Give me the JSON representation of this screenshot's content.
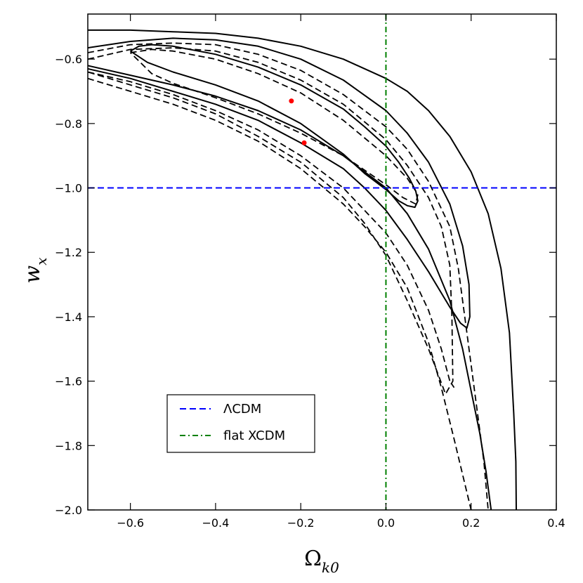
{
  "chart_data": {
    "type": "line",
    "xlabel": "Ω",
    "xlabel_sub": "k0",
    "ylabel": "w",
    "ylabel_sub": "x",
    "xlim": [
      -0.7,
      0.4
    ],
    "ylim": [
      -2.0,
      -0.46
    ],
    "x_ticks": [
      -0.6,
      -0.4,
      -0.2,
      0.0,
      0.2,
      0.4
    ],
    "x_tick_labels": [
      "−0.6",
      "−0.4",
      "−0.2",
      "0.0",
      "0.2",
      "0.4"
    ],
    "y_ticks": [
      -0.6,
      -0.8,
      -1.0,
      -1.2,
      -1.4,
      -1.6,
      -1.8,
      -2.0
    ],
    "y_tick_labels": [
      "−0.6",
      "−0.8",
      "−1.0",
      "−1.2",
      "−1.4",
      "−1.6",
      "−1.8",
      "−2.0"
    ],
    "reference_lines": [
      {
        "name": "lcdm",
        "orientation": "horizontal",
        "value": -1.0,
        "color": "#0000ff",
        "style": "dashed",
        "legend_label": "ΛCDM"
      },
      {
        "name": "flat-xcdm",
        "orientation": "vertical",
        "value": 0.0,
        "color": "#008000",
        "style": "dashdot",
        "legend_label": "flat XCDM"
      }
    ],
    "best_fit_points": [
      {
        "x": -0.222,
        "y": -0.73,
        "color": "#ff0000"
      },
      {
        "x": -0.192,
        "y": -0.86,
        "color": "#ff0000"
      }
    ],
    "series": [
      {
        "name": "solid-1sigma",
        "style": "solid",
        "points": [
          [
            -0.6,
            -0.575
          ],
          [
            -0.58,
            -0.56
          ],
          [
            -0.55,
            -0.555
          ],
          [
            -0.5,
            -0.56
          ],
          [
            -0.4,
            -0.585
          ],
          [
            -0.3,
            -0.625
          ],
          [
            -0.2,
            -0.68
          ],
          [
            -0.1,
            -0.755
          ],
          [
            -0.05,
            -0.81
          ],
          [
            0.0,
            -0.87
          ],
          [
            0.03,
            -0.92
          ],
          [
            0.055,
            -0.97
          ],
          [
            0.07,
            -1.01
          ],
          [
            0.075,
            -1.04
          ],
          [
            0.068,
            -1.06
          ],
          [
            0.05,
            -1.055
          ],
          [
            0.03,
            -1.04
          ],
          [
            0.0,
            -1.005
          ],
          [
            -0.05,
            -0.955
          ],
          [
            -0.1,
            -0.895
          ],
          [
            -0.2,
            -0.8
          ],
          [
            -0.3,
            -0.73
          ],
          [
            -0.4,
            -0.68
          ],
          [
            -0.5,
            -0.64
          ],
          [
            -0.56,
            -0.61
          ],
          [
            -0.6,
            -0.575
          ]
        ]
      },
      {
        "name": "solid-2sigma",
        "style": "solid",
        "points": [
          [
            -0.7,
            -0.565
          ],
          [
            -0.6,
            -0.545
          ],
          [
            -0.5,
            -0.535
          ],
          [
            -0.4,
            -0.54
          ],
          [
            -0.3,
            -0.56
          ],
          [
            -0.2,
            -0.6
          ],
          [
            -0.1,
            -0.665
          ],
          [
            0.0,
            -0.76
          ],
          [
            0.05,
            -0.83
          ],
          [
            0.1,
            -0.92
          ],
          [
            0.15,
            -1.05
          ],
          [
            0.18,
            -1.18
          ],
          [
            0.195,
            -1.3
          ],
          [
            0.197,
            -1.4
          ],
          [
            0.19,
            -1.435
          ],
          [
            0.175,
            -1.42
          ],
          [
            0.15,
            -1.37
          ],
          [
            0.1,
            -1.26
          ],
          [
            0.05,
            -1.16
          ],
          [
            0.0,
            -1.07
          ],
          [
            -0.05,
            -1.0
          ],
          [
            -0.1,
            -0.94
          ],
          [
            -0.2,
            -0.86
          ],
          [
            -0.3,
            -0.79
          ],
          [
            -0.4,
            -0.74
          ],
          [
            -0.5,
            -0.7
          ],
          [
            -0.6,
            -0.66
          ],
          [
            -0.7,
            -0.63
          ]
        ]
      },
      {
        "name": "solid-3sigma",
        "style": "solid",
        "points": [
          [
            -0.7,
            -0.51
          ],
          [
            -0.6,
            -0.51
          ],
          [
            -0.5,
            -0.515
          ],
          [
            -0.4,
            -0.52
          ],
          [
            -0.3,
            -0.535
          ],
          [
            -0.2,
            -0.56
          ],
          [
            -0.1,
            -0.6
          ],
          [
            0.0,
            -0.66
          ],
          [
            0.05,
            -0.7
          ],
          [
            0.1,
            -0.76
          ],
          [
            0.15,
            -0.84
          ],
          [
            0.2,
            -0.95
          ],
          [
            0.24,
            -1.08
          ],
          [
            0.27,
            -1.25
          ],
          [
            0.29,
            -1.45
          ],
          [
            0.3,
            -1.7
          ],
          [
            0.305,
            -1.85
          ],
          [
            0.306,
            -2.0
          ]
        ]
      },
      {
        "name": "solid-3sigma-lower",
        "style": "solid",
        "points": [
          [
            -0.7,
            -0.62
          ],
          [
            -0.6,
            -0.65
          ],
          [
            -0.5,
            -0.68
          ],
          [
            -0.4,
            -0.715
          ],
          [
            -0.3,
            -0.76
          ],
          [
            -0.2,
            -0.82
          ],
          [
            -0.1,
            -0.9
          ],
          [
            0.0,
            -1.0
          ],
          [
            0.05,
            -1.08
          ],
          [
            0.1,
            -1.19
          ],
          [
            0.15,
            -1.35
          ],
          [
            0.18,
            -1.5
          ],
          [
            0.2,
            -1.63
          ],
          [
            0.22,
            -1.76
          ],
          [
            0.235,
            -1.88
          ],
          [
            0.247,
            -2.0
          ]
        ]
      },
      {
        "name": "dashed-1sigma",
        "style": "dashed",
        "points": [
          [
            -0.6,
            -0.58
          ],
          [
            -0.55,
            -0.57
          ],
          [
            -0.5,
            -0.575
          ],
          [
            -0.4,
            -0.6
          ],
          [
            -0.3,
            -0.645
          ],
          [
            -0.2,
            -0.705
          ],
          [
            -0.1,
            -0.79
          ],
          [
            0.0,
            -0.9
          ],
          [
            0.05,
            -0.97
          ],
          [
            0.075,
            -1.02
          ],
          [
            0.07,
            -1.05
          ],
          [
            0.04,
            -1.03
          ],
          [
            0.0,
            -0.99
          ],
          [
            -0.05,
            -0.945
          ],
          [
            -0.1,
            -0.9
          ],
          [
            -0.2,
            -0.83
          ],
          [
            -0.3,
            -0.77
          ],
          [
            -0.4,
            -0.72
          ],
          [
            -0.5,
            -0.675
          ],
          [
            -0.55,
            -0.645
          ],
          [
            -0.6,
            -0.58
          ]
        ]
      },
      {
        "name": "dashed-2sigma",
        "style": "dashed",
        "points": [
          [
            -0.7,
            -0.6
          ],
          [
            -0.6,
            -0.57
          ],
          [
            -0.5,
            -0.565
          ],
          [
            -0.4,
            -0.575
          ],
          [
            -0.3,
            -0.61
          ],
          [
            -0.2,
            -0.665
          ],
          [
            -0.1,
            -0.74
          ],
          [
            0.0,
            -0.85
          ],
          [
            0.05,
            -0.93
          ],
          [
            0.1,
            -1.03
          ],
          [
            0.13,
            -1.12
          ],
          [
            0.15,
            -1.24
          ],
          [
            0.155,
            -1.4
          ],
          [
            0.157,
            -1.6
          ],
          [
            0.14,
            -1.64
          ],
          [
            0.1,
            -1.5
          ],
          [
            0.05,
            -1.35
          ],
          [
            0.0,
            -1.21
          ],
          [
            -0.05,
            -1.11
          ],
          [
            -0.1,
            -1.03
          ],
          [
            -0.2,
            -0.92
          ],
          [
            -0.3,
            -0.84
          ],
          [
            -0.4,
            -0.77
          ],
          [
            -0.5,
            -0.72
          ],
          [
            -0.6,
            -0.68
          ],
          [
            -0.7,
            -0.64
          ]
        ]
      },
      {
        "name": "dashed-3sigma-upper",
        "style": "dashed",
        "points": [
          [
            -0.7,
            -0.58
          ],
          [
            -0.6,
            -0.555
          ],
          [
            -0.5,
            -0.55
          ],
          [
            -0.4,
            -0.555
          ],
          [
            -0.3,
            -0.585
          ],
          [
            -0.2,
            -0.635
          ],
          [
            -0.1,
            -0.71
          ],
          [
            0.0,
            -0.81
          ],
          [
            0.05,
            -0.88
          ],
          [
            0.1,
            -0.98
          ],
          [
            0.15,
            -1.12
          ],
          [
            0.17,
            -1.25
          ],
          [
            0.19,
            -1.45
          ],
          [
            0.21,
            -1.65
          ],
          [
            0.23,
            -1.85
          ],
          [
            0.24,
            -2.0
          ]
        ]
      },
      {
        "name": "dashed-3sigma-lower",
        "style": "dashed",
        "points": [
          [
            -0.7,
            -0.66
          ],
          [
            -0.6,
            -0.7
          ],
          [
            -0.5,
            -0.74
          ],
          [
            -0.4,
            -0.79
          ],
          [
            -0.3,
            -0.855
          ],
          [
            -0.2,
            -0.94
          ],
          [
            -0.1,
            -1.05
          ],
          [
            -0.05,
            -1.12
          ],
          [
            0.0,
            -1.2
          ],
          [
            0.05,
            -1.31
          ],
          [
            0.1,
            -1.48
          ],
          [
            0.13,
            -1.62
          ],
          [
            0.16,
            -1.78
          ],
          [
            0.2,
            -2.0
          ]
        ]
      },
      {
        "name": "dashed-outer",
        "style": "dashed",
        "points": [
          [
            -0.7,
            -0.64
          ],
          [
            -0.6,
            -0.67
          ],
          [
            -0.5,
            -0.71
          ],
          [
            -0.4,
            -0.76
          ],
          [
            -0.3,
            -0.82
          ],
          [
            -0.2,
            -0.9
          ],
          [
            -0.1,
            -1.0
          ],
          [
            -0.05,
            -1.07
          ],
          [
            0.0,
            -1.14
          ],
          [
            0.05,
            -1.24
          ],
          [
            0.1,
            -1.38
          ],
          [
            0.13,
            -1.5
          ],
          [
            0.15,
            -1.6
          ],
          [
            0.16,
            -1.62
          ]
        ]
      }
    ]
  }
}
